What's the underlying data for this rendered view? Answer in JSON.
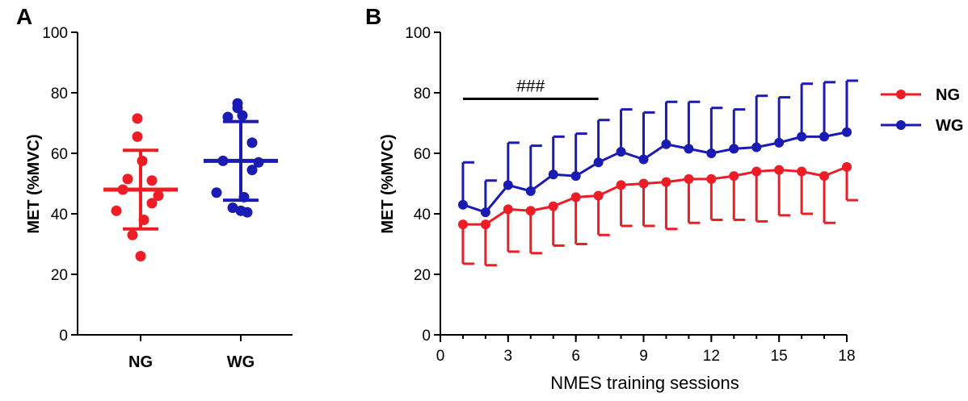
{
  "colors": {
    "NG": "#ee1c25",
    "WG": "#1a1ab4",
    "axis": "#000000"
  },
  "chart_data": [
    {
      "panel": "A",
      "type": "scatter",
      "ylabel": "MET (%MVC)",
      "xlabel": "",
      "ylim": [
        0,
        100
      ],
      "yticks": [
        "0",
        "20",
        "40",
        "60",
        "80",
        "100"
      ],
      "categories": [
        "NG",
        "WG"
      ],
      "groups": [
        {
          "name": "NG",
          "points": [
            71.5,
            65.5,
            57.5,
            51.5,
            51,
            48,
            46,
            43.5,
            41,
            38,
            33,
            26
          ],
          "mean": 48,
          "sd_upper": 61,
          "sd_lower": 35
        },
        {
          "name": "WG",
          "points": [
            76.5,
            75,
            72.5,
            72,
            63.5,
            57.5,
            57,
            54.5,
            47,
            45.5,
            42,
            41,
            40.5
          ],
          "mean": 57.5,
          "sd_upper": 70.5,
          "sd_lower": 44.5
        }
      ]
    },
    {
      "panel": "B",
      "type": "line",
      "ylabel": "MET (%MVC)",
      "xlabel": "NMES training sessions",
      "xlim": [
        0,
        18
      ],
      "ylim": [
        0,
        100
      ],
      "xticks": [
        "0",
        "3",
        "6",
        "9",
        "12",
        "15",
        "18"
      ],
      "yticks": [
        "0",
        "20",
        "40",
        "60",
        "80",
        "100"
      ],
      "legend_position": "right",
      "x": [
        1,
        2,
        3,
        4,
        5,
        6,
        7,
        8,
        9,
        10,
        11,
        12,
        13,
        14,
        15,
        16,
        17,
        18
      ],
      "series": [
        {
          "name": "NG",
          "values": [
            36.5,
            36.5,
            41.5,
            41,
            42.5,
            45.5,
            46,
            49.5,
            50,
            50.5,
            51.5,
            51.5,
            52.5,
            54,
            54.5,
            54,
            52.5,
            55.5
          ],
          "error_lower": [
            23.5,
            23,
            27.5,
            27,
            29.5,
            30,
            33,
            36,
            36,
            35,
            37,
            38,
            38,
            37.5,
            39.5,
            40,
            37,
            44.5
          ],
          "error_direction": "down"
        },
        {
          "name": "WG",
          "values": [
            43,
            40.5,
            49.5,
            47.5,
            53,
            52.5,
            57,
            60.5,
            58,
            63,
            61.5,
            60,
            61.5,
            62,
            63.5,
            65.5,
            65.5,
            67
          ],
          "error_upper": [
            57,
            51,
            63.5,
            62.5,
            65.5,
            66.5,
            71,
            74.5,
            73.5,
            77,
            77,
            75,
            74.5,
            79,
            78.5,
            83,
            83.5,
            84
          ],
          "error_direction": "up"
        }
      ],
      "annotations": [
        {
          "text": "###",
          "x_start": 1,
          "x_end": 7,
          "y": 78
        }
      ]
    }
  ]
}
